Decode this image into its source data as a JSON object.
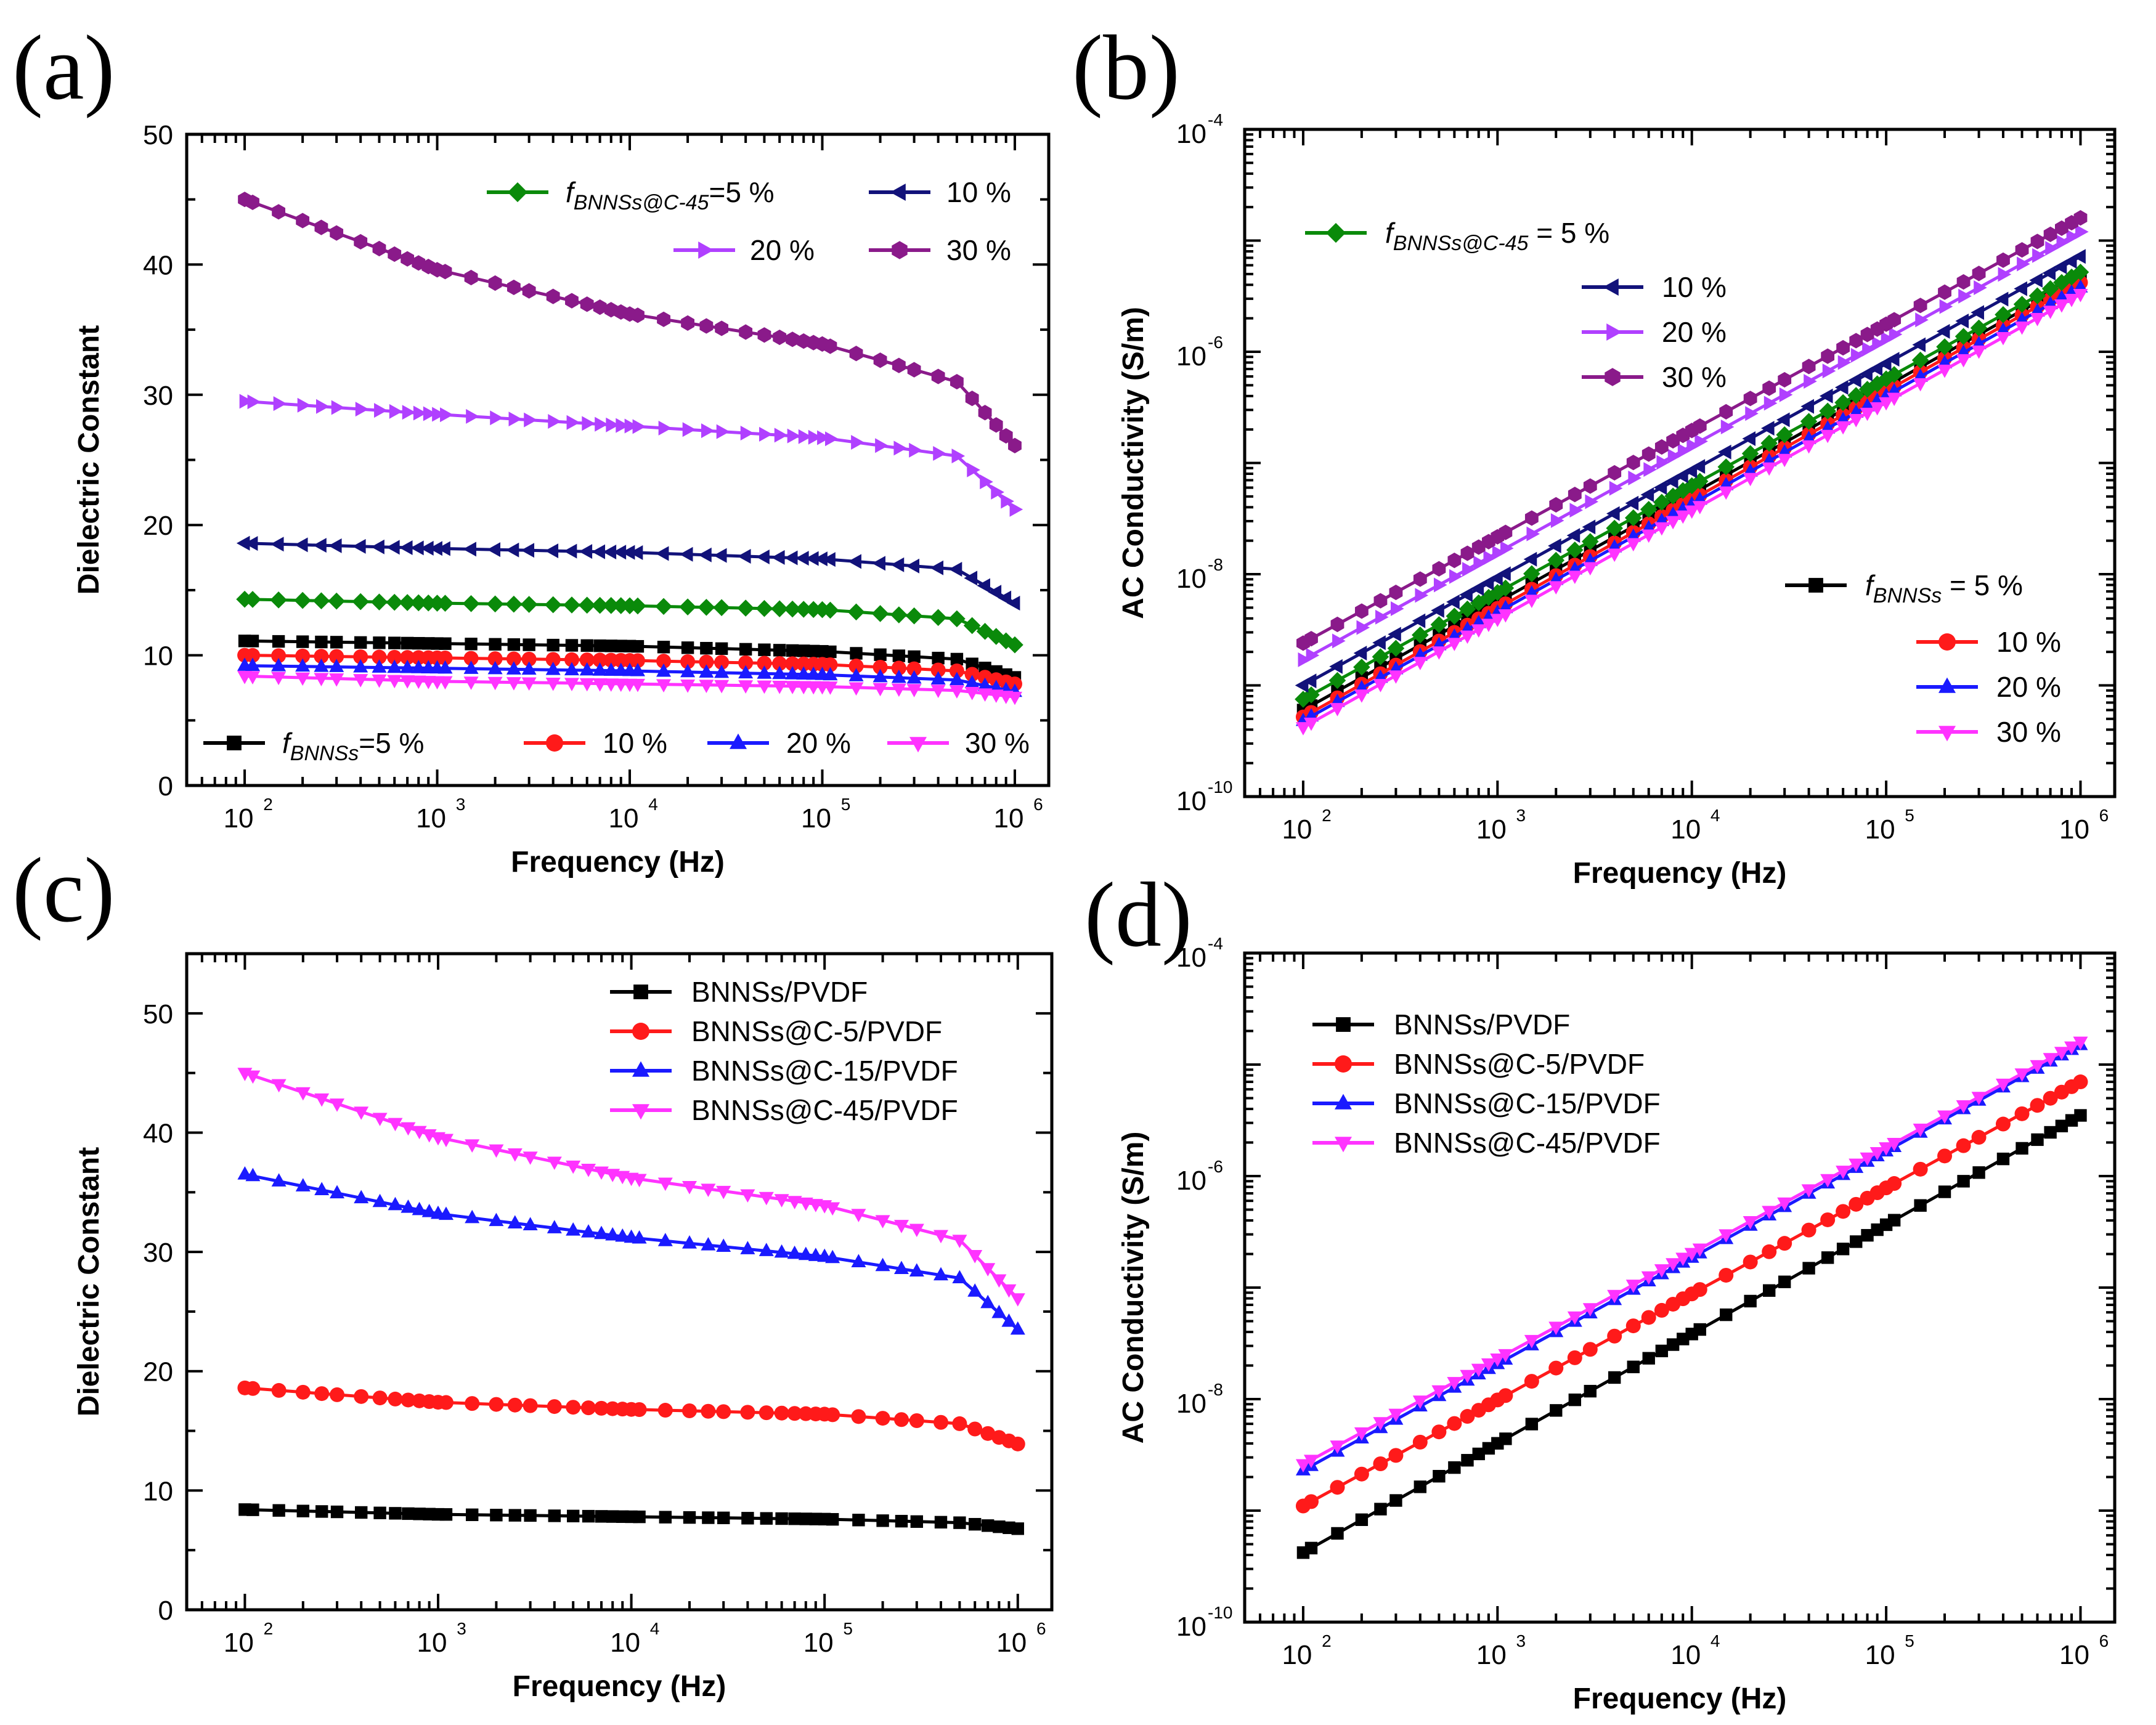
{
  "colors": {
    "black": "#000000",
    "red": "#ff1a1a",
    "blue": "#1a1aff",
    "magenta": "#ff33ff",
    "green": "#0a8a0a",
    "navy": "#12127a",
    "violet": "#b040ff",
    "purple": "#8a1a8a"
  },
  "chart_data": [
    {
      "id": "a",
      "panel_label": "(a)",
      "type": "line",
      "xscale": "log",
      "xlabel": "Frequency (Hz)",
      "ylabel": "Dielectric Constant",
      "xlim": [
        50,
        1500000
      ],
      "ylim": [
        0,
        50
      ],
      "yticks": [
        "0",
        "10",
        "20",
        "30",
        "40",
        "50"
      ],
      "xtick_base": "10",
      "xtick_exponents": [
        "2",
        "3",
        "4",
        "5",
        "6"
      ],
      "x_range": [
        100,
        1000000
      ],
      "series": [
        {
          "name": "fBNNSs=5 %",
          "color_key": "black",
          "marker": "square",
          "values": [
            11.1,
            10.9,
            10.7,
            10.3,
            9.7,
            8.3
          ]
        },
        {
          "name": "10 %",
          "color_key": "red",
          "marker": "circle",
          "values": [
            10.0,
            9.8,
            9.6,
            9.3,
            8.8,
            7.8
          ]
        },
        {
          "name": "20 %",
          "color_key": "blue",
          "marker": "triangle-up",
          "values": [
            9.2,
            9.0,
            8.8,
            8.5,
            8.1,
            7.2
          ]
        },
        {
          "name": "30 %",
          "color_key": "magenta",
          "marker": "triangle-down",
          "values": [
            8.4,
            8.0,
            7.8,
            7.6,
            7.3,
            6.8
          ]
        },
        {
          "name": "fBNNSs@C-45=5 %",
          "color_key": "green",
          "marker": "diamond",
          "values": [
            14.3,
            14.0,
            13.8,
            13.5,
            12.8,
            10.8
          ]
        },
        {
          "name": "10 %",
          "color_key": "navy",
          "marker": "triangle-left",
          "values": [
            18.6,
            18.2,
            17.9,
            17.4,
            16.6,
            14.0
          ]
        },
        {
          "name": "20 %",
          "color_key": "violet",
          "marker": "triangle-right",
          "values": [
            29.5,
            28.5,
            27.6,
            26.7,
            25.3,
            21.2
          ]
        },
        {
          "name": "30 %",
          "color_key": "purple",
          "marker": "hexagon",
          "values": [
            45.0,
            39.6,
            36.2,
            33.9,
            31.0,
            26.1
          ]
        }
      ],
      "legend_groups": [
        {
          "sub": "BNNSs@C-45",
          "prefix": "f",
          "eq": "=5 %",
          "items": [
            {
              "series": 4,
              "label": ""
            },
            {
              "series": 5,
              "label": "10 %"
            },
            {
              "series": 6,
              "label": "20 %"
            },
            {
              "series": 7,
              "label": "30 %"
            }
          ]
        },
        {
          "sub": "BNNSs",
          "prefix": "f",
          "eq": "=5 %",
          "items": [
            {
              "series": 0,
              "label": ""
            },
            {
              "series": 1,
              "label": "10 %"
            },
            {
              "series": 2,
              "label": "20 %"
            },
            {
              "series": 3,
              "label": "30 %"
            }
          ]
        }
      ]
    },
    {
      "id": "b",
      "panel_label": "(b)",
      "type": "line",
      "xscale": "log",
      "yscale": "log",
      "xlabel": "Frequency (Hz)",
      "ylabel": "AC Conductivity (S/m)",
      "xlim": [
        50,
        1500000
      ],
      "ylim": [
        1e-10,
        0.0001
      ],
      "ytick_base": "10",
      "ytick_exponents": [
        "-10",
        "-8",
        "-6",
        "-4"
      ],
      "xtick_base": "10",
      "xtick_exponents": [
        "2",
        "3",
        "4",
        "5",
        "6"
      ],
      "x_range": [
        100,
        1000000
      ],
      "series": [
        {
          "name": "fBNNSs = 5 %",
          "color_key": "black",
          "marker": "square",
          "start": 6e-10,
          "end": 4.6e-06
        },
        {
          "name": "10 %",
          "color_key": "red",
          "marker": "circle",
          "start": 5.2e-10,
          "end": 4.2e-06
        },
        {
          "name": "20 %",
          "color_key": "blue",
          "marker": "triangle-up",
          "start": 4.8e-10,
          "end": 3.8e-06
        },
        {
          "name": "30 %",
          "color_key": "magenta",
          "marker": "triangle-down",
          "start": 4.2e-10,
          "end": 3.3e-06
        },
        {
          "name": "fBNNSs@C-45 = 5 %",
          "color_key": "green",
          "marker": "diamond",
          "start": 7.5e-10,
          "end": 5.2e-06
        },
        {
          "name": "10 %",
          "color_key": "navy",
          "marker": "triangle-left",
          "start": 1e-09,
          "end": 7.2e-06
        },
        {
          "name": "20 %",
          "color_key": "violet",
          "marker": "triangle-right",
          "start": 1.7e-09,
          "end": 1.2e-05
        },
        {
          "name": "30 %",
          "color_key": "purple",
          "marker": "hexagon",
          "start": 2.4e-09,
          "end": 1.6e-05
        }
      ],
      "legend_groups": [
        {
          "sub": "BNNSs@C-45",
          "prefix": "f",
          "eq": " = 5 %",
          "items": [
            {
              "series": 4,
              "label": ""
            },
            {
              "series": 5,
              "label": "10 %"
            },
            {
              "series": 6,
              "label": "20 %"
            },
            {
              "series": 7,
              "label": "30 %"
            }
          ]
        },
        {
          "sub": "BNNSs",
          "prefix": "f",
          "eq": " = 5 %",
          "items": [
            {
              "series": 0,
              "label": ""
            },
            {
              "series": 1,
              "label": "10 %"
            },
            {
              "series": 2,
              "label": "20 %"
            },
            {
              "series": 3,
              "label": "30 %"
            }
          ]
        }
      ]
    },
    {
      "id": "c",
      "panel_label": "(c)",
      "type": "line",
      "xscale": "log",
      "xlabel": "Frequency (Hz)",
      "ylabel": "Dielectric Constant",
      "xlim": [
        50,
        1500000
      ],
      "ylim": [
        0,
        55
      ],
      "yticks": [
        "0",
        "10",
        "20",
        "30",
        "40",
        "50"
      ],
      "xtick_base": "10",
      "xtick_exponents": [
        "2",
        "3",
        "4",
        "5",
        "6"
      ],
      "x_range": [
        100,
        1000000
      ],
      "series": [
        {
          "name": "BNNSs/PVDF",
          "color_key": "black",
          "marker": "square",
          "values": [
            8.4,
            8.0,
            7.8,
            7.6,
            7.3,
            6.8
          ]
        },
        {
          "name": "BNNSs@C-5/PVDF",
          "color_key": "red",
          "marker": "circle",
          "values": [
            18.6,
            17.4,
            16.8,
            16.4,
            15.6,
            13.9
          ]
        },
        {
          "name": "BNNSs@C-15/PVDF",
          "color_key": "blue",
          "marker": "triangle-up",
          "values": [
            36.5,
            33.2,
            31.2,
            29.6,
            27.8,
            23.5
          ]
        },
        {
          "name": "BNNSs@C-45/PVDF",
          "color_key": "magenta",
          "marker": "triangle-down",
          "values": [
            45.0,
            39.6,
            36.2,
            33.9,
            31.0,
            26.1
          ]
        }
      ]
    },
    {
      "id": "d",
      "panel_label": "(d)",
      "type": "line",
      "xscale": "log",
      "yscale": "log",
      "xlabel": "Frequency (Hz)",
      "ylabel": "AC Conductivity (S/m)",
      "xlim": [
        50,
        1500000
      ],
      "ylim": [
        1e-10,
        0.0001
      ],
      "ytick_base": "10",
      "ytick_exponents": [
        "-10",
        "-8",
        "-6",
        "-4"
      ],
      "xtick_base": "10",
      "xtick_exponents": [
        "2",
        "3",
        "4",
        "5",
        "6"
      ],
      "x_range": [
        100,
        1000000
      ],
      "series": [
        {
          "name": "BNNSs/PVDF",
          "color_key": "black",
          "marker": "square",
          "start": 4.2e-10,
          "end": 3.5e-06
        },
        {
          "name": "BNNSs@C-5/PVDF",
          "color_key": "red",
          "marker": "circle",
          "start": 1.1e-09,
          "end": 7e-06
        },
        {
          "name": "BNNSs@C-15/PVDF",
          "color_key": "blue",
          "marker": "triangle-up",
          "start": 2.3e-09,
          "end": 1.5e-05
        },
        {
          "name": "BNNSs@C-45/PVDF",
          "color_key": "magenta",
          "marker": "triangle-down",
          "start": 2.6e-09,
          "end": 1.6e-05
        }
      ]
    }
  ]
}
